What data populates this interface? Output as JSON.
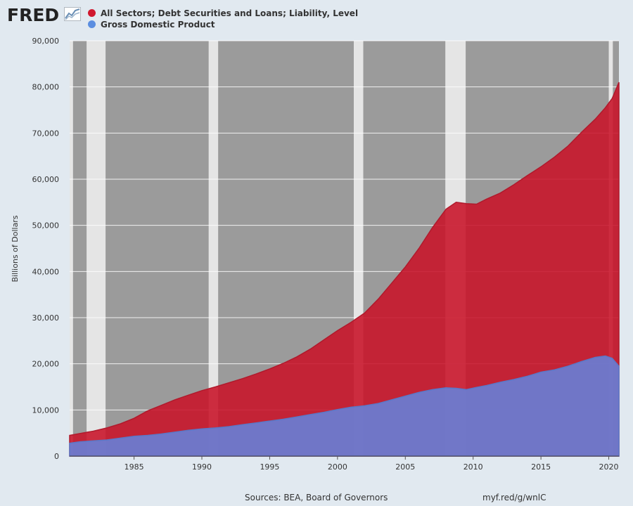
{
  "header": {
    "logo_text": "FRED"
  },
  "colors": {
    "debt": "#c42335",
    "gdp": "#6e7dc6",
    "plot_bg": "#9b9b9b",
    "recession": "#e5e5e5",
    "page_bg": "#e1e9f0"
  },
  "chart_data": {
    "type": "area",
    "title": "",
    "xlabel": "",
    "ylabel": "Billions of Dollars",
    "xlim": [
      1980.25,
      2020.75
    ],
    "ylim": [
      0,
      90000
    ],
    "grid": true,
    "legend_position": "top-left",
    "y_ticks": [
      0,
      10000,
      20000,
      30000,
      40000,
      50000,
      60000,
      70000,
      80000,
      90000
    ],
    "y_tick_labels": [
      "0",
      "10,000",
      "20,000",
      "30,000",
      "40,000",
      "50,000",
      "60,000",
      "70,000",
      "80,000",
      "90,000"
    ],
    "x_ticks": [
      1985,
      1990,
      1995,
      2000,
      2005,
      2010,
      2015,
      2020
    ],
    "x_tick_labels": [
      "1985",
      "1990",
      "1995",
      "2000",
      "2005",
      "2010",
      "2015",
      "2020"
    ],
    "recessions": [
      [
        1980.0,
        1980.5
      ],
      [
        1981.5,
        1982.9
      ],
      [
        1990.5,
        1991.2
      ],
      [
        2001.2,
        2001.9
      ],
      [
        2007.95,
        2009.45
      ],
      [
        2020.0,
        2020.3
      ]
    ],
    "series": [
      {
        "name": "All Sectors; Debt Securities and Loans; Liability, Level",
        "color": "#c42335",
        "x": [
          1980.25,
          1981,
          1982,
          1983,
          1984,
          1985,
          1986,
          1987,
          1988,
          1989,
          1990,
          1991,
          1992,
          1993,
          1994,
          1995,
          1996,
          1997,
          1998,
          1999,
          2000,
          2001,
          2002,
          2003,
          2004,
          2005,
          2006,
          2007,
          2008,
          2008.75,
          2009.5,
          2010.25,
          2011,
          2012,
          2013,
          2014,
          2015,
          2016,
          2017,
          2018,
          2019,
          2019.75,
          2020.25,
          2020.75
        ],
        "values": [
          4500,
          4900,
          5400,
          6100,
          7000,
          8200,
          9800,
          11000,
          12200,
          13200,
          14200,
          15000,
          15900,
          16800,
          17800,
          18900,
          20100,
          21500,
          23200,
          25200,
          27200,
          29000,
          31000,
          34000,
          37500,
          41000,
          45000,
          49500,
          53500,
          55000,
          54700,
          54600,
          55700,
          57000,
          58800,
          60800,
          62700,
          64800,
          67200,
          70200,
          73000,
          75500,
          77500,
          81000
        ]
      },
      {
        "name": "Gross Domestic Product",
        "color": "#5b8ee0",
        "x": [
          1980.25,
          1981,
          1982,
          1983,
          1984,
          1985,
          1986,
          1987,
          1988,
          1989,
          1990,
          1991,
          1992,
          1993,
          1994,
          1995,
          1996,
          1997,
          1998,
          1999,
          2000,
          2001,
          2002,
          2003,
          2004,
          2005,
          2006,
          2007,
          2008,
          2008.75,
          2009.5,
          2010.25,
          2011,
          2012,
          2013,
          2014,
          2015,
          2016,
          2017,
          2018,
          2019,
          2019.75,
          2020.25,
          2020.75
        ],
        "values": [
          2800,
          3100,
          3300,
          3500,
          3900,
          4300,
          4500,
          4800,
          5200,
          5600,
          5900,
          6100,
          6400,
          6800,
          7200,
          7600,
          8000,
          8500,
          9000,
          9500,
          10100,
          10600,
          10900,
          11400,
          12200,
          13000,
          13800,
          14400,
          14800,
          14700,
          14400,
          14900,
          15300,
          16000,
          16600,
          17300,
          18200,
          18700,
          19500,
          20500,
          21400,
          21700,
          21200,
          19500
        ]
      }
    ]
  },
  "footer": {
    "sources": "Sources: BEA, Board of Governors",
    "url": "myf.red/g/wnlC"
  }
}
